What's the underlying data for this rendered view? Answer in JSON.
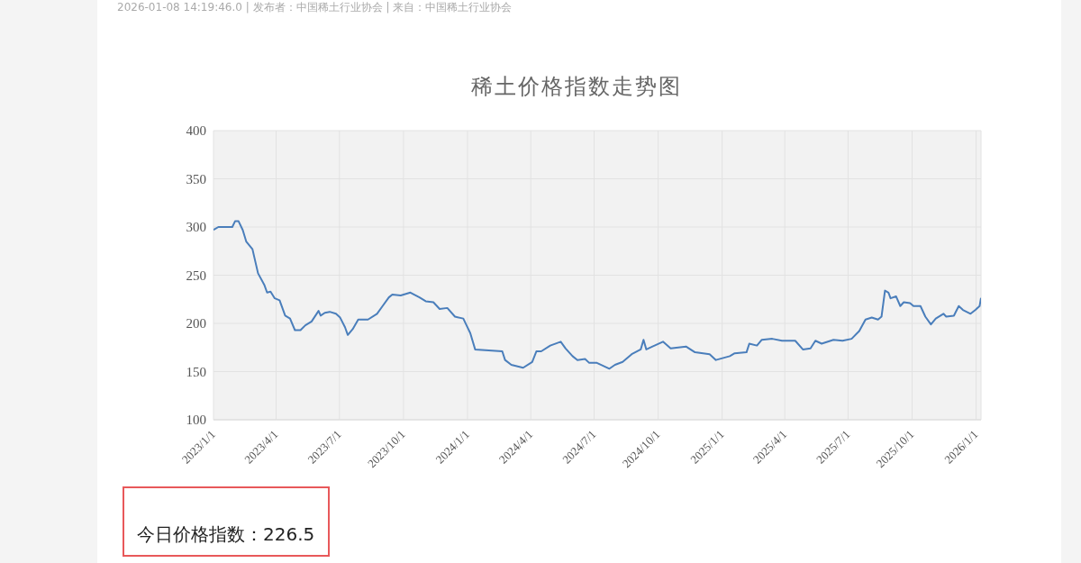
{
  "chart_data": {
    "type": "line",
    "title": "稀土价格指数走势图",
    "annotations": [
      "2026-01-08 14:19:46.0 | 发布者：中国稀土行业协会 | 来自：中国稀土行业协会",
      "今日价格指数：226.5"
    ],
    "x": [
      "2023-01-01",
      "2023-01-08",
      "2023-01-28",
      "2023-02-01",
      "2023-02-06",
      "2023-02-12",
      "2023-02-17",
      "2023-02-26",
      "2023-03-06",
      "2023-03-15",
      "2023-03-19",
      "2023-03-24",
      "2023-03-30",
      "2023-04-06",
      "2023-04-14",
      "2023-04-21",
      "2023-04-28",
      "2023-05-06",
      "2023-05-13",
      "2023-05-22",
      "2023-06-01",
      "2023-06-04",
      "2023-06-10",
      "2023-06-17",
      "2023-06-26",
      "2023-07-02",
      "2023-07-09",
      "2023-07-13",
      "2023-07-20",
      "2023-07-28",
      "2023-08-11",
      "2023-08-24",
      "2023-09-01",
      "2023-09-10",
      "2023-09-15",
      "2023-09-27",
      "2023-10-11",
      "2023-10-24",
      "2023-11-02",
      "2023-11-13",
      "2023-11-22",
      "2023-12-03",
      "2023-12-14",
      "2023-12-26",
      "2023-12-30",
      "2024-01-05",
      "2024-01-12",
      "2024-02-20",
      "2024-02-24",
      "2024-03-04",
      "2024-03-21",
      "2024-04-03",
      "2024-04-09",
      "2024-04-16",
      "2024-04-29",
      "2024-05-14",
      "2024-05-21",
      "2024-05-31",
      "2024-06-07",
      "2024-06-18",
      "2024-06-24",
      "2024-07-05",
      "2024-07-23",
      "2024-07-31",
      "2024-08-11",
      "2024-08-24",
      "2024-09-06",
      "2024-09-10",
      "2024-09-14",
      "2024-09-23",
      "2024-10-08",
      "2024-10-19",
      "2024-11-10",
      "2024-11-23",
      "2024-12-14",
      "2024-12-23",
      "2025-01-12",
      "2025-01-19",
      "2025-02-05",
      "2025-02-09",
      "2025-02-20",
      "2025-02-27",
      "2025-03-14",
      "2025-03-28",
      "2025-04-16",
      "2025-04-27",
      "2025-05-08",
      "2025-05-15",
      "2025-05-24",
      "2025-06-10",
      "2025-06-23",
      "2025-07-06",
      "2025-07-17",
      "2025-07-26",
      "2025-08-04",
      "2025-08-13",
      "2025-08-18",
      "2025-08-23",
      "2025-08-28",
      "2025-08-31",
      "2025-09-08",
      "2025-09-14",
      "2025-09-19",
      "2025-09-28",
      "2025-10-03",
      "2025-10-13",
      "2025-10-20",
      "2025-10-28",
      "2025-11-04",
      "2025-11-15",
      "2025-11-19",
      "2025-11-30",
      "2025-12-07",
      "2025-12-13",
      "2025-12-24",
      "2025-12-31",
      "2026-01-06",
      "2026-01-08"
    ],
    "series": [
      {
        "color": "#4a7ebb",
        "values": [
          297,
          300,
          300,
          306,
          306,
          297,
          285,
          277,
          252,
          240,
          232,
          233,
          226,
          224,
          208,
          205,
          193,
          193,
          198,
          202,
          213,
          208,
          211,
          212,
          210,
          206,
          196,
          188,
          194,
          204,
          204,
          210,
          218,
          227,
          230,
          229,
          232,
          227,
          223,
          222,
          215,
          216,
          207,
          205,
          199,
          190,
          173,
          171,
          162,
          157,
          154,
          160,
          171,
          171,
          177,
          181,
          174,
          166,
          162,
          163,
          159,
          159,
          153,
          157,
          160,
          168,
          173,
          183,
          173,
          176,
          181,
          174,
          176,
          170,
          168,
          162,
          166,
          169,
          170,
          179,
          177,
          183,
          184,
          182,
          182,
          173,
          174,
          182,
          179,
          183,
          182,
          184,
          192,
          204,
          206,
          204,
          207,
          234,
          232,
          226,
          228,
          218,
          222,
          221,
          218,
          218,
          207,
          199,
          205,
          210,
          207,
          208,
          218,
          214,
          210,
          214,
          218,
          226.5
        ]
      }
    ],
    "xlim": [
      "2023-01-01",
      "2026-01-08"
    ],
    "xticks": [
      {
        "value": "2023-01-01",
        "label": "2023/1/1"
      },
      {
        "value": "2023-04-01",
        "label": "2023/4/1"
      },
      {
        "value": "2023-07-01",
        "label": "2023/7/1"
      },
      {
        "value": "2023-10-01",
        "label": "2023/10/1"
      },
      {
        "value": "2024-01-01",
        "label": "2024/1/1"
      },
      {
        "value": "2024-04-01",
        "label": "2024/4/1"
      },
      {
        "value": "2024-07-01",
        "label": "2024/7/1"
      },
      {
        "value": "2024-10-01",
        "label": "2024/10/1"
      },
      {
        "value": "2025-01-01",
        "label": "2025/1/1"
      },
      {
        "value": "2025-04-01",
        "label": "2025/4/1"
      },
      {
        "value": "2025-07-01",
        "label": "2025/7/1"
      },
      {
        "value": "2025-10-01",
        "label": "2025/10/1"
      },
      {
        "value": "2026-01-01",
        "label": "2026/1/1"
      }
    ],
    "ylim": [
      100,
      400
    ],
    "yticks": [
      100,
      150,
      200,
      250,
      300,
      350,
      400
    ],
    "grid": true
  }
}
